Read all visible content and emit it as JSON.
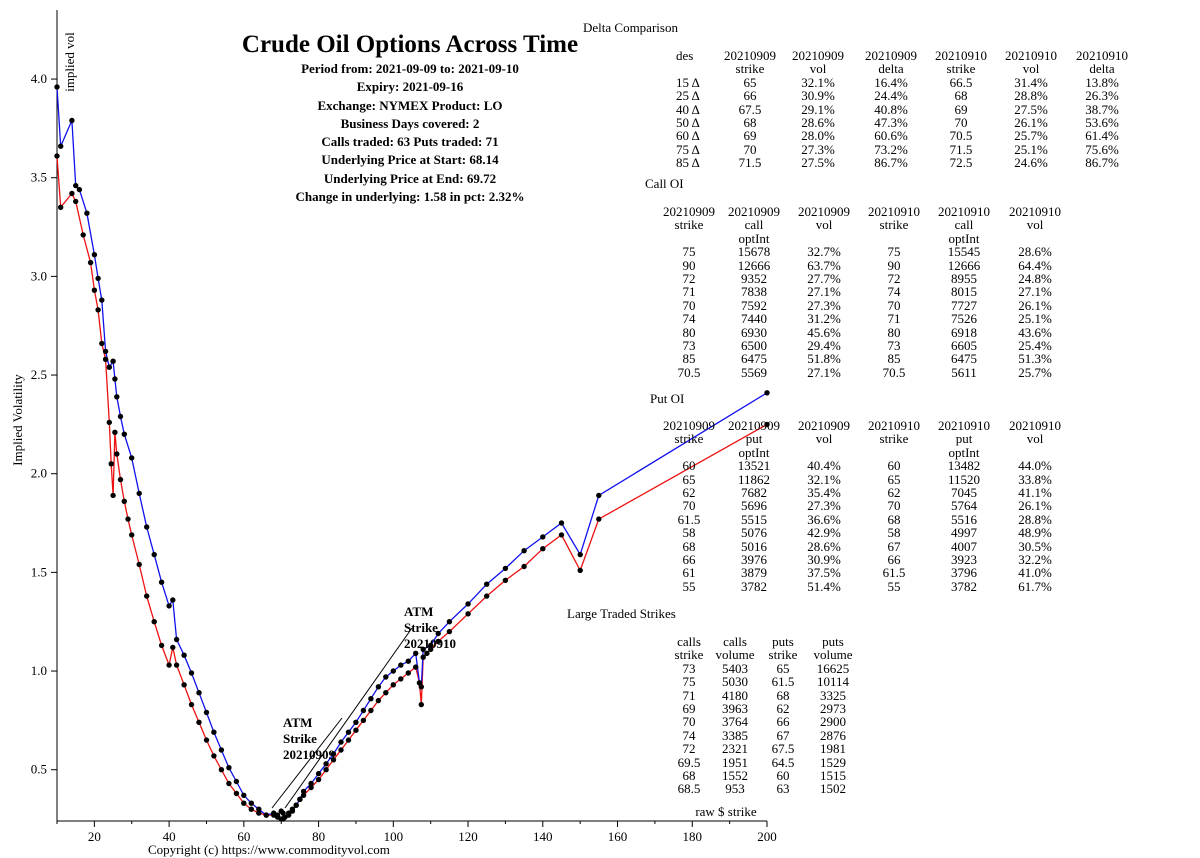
{
  "header": {
    "title": "Crude Oil Options Across Time",
    "lines": [
      "Period from: 2021-09-09 to: 2021-09-10",
      "Expiry: 2021-09-16",
      "Exchange: NYMEX Product: LO",
      "Business Days covered: 2",
      "Calls traded: 63 Puts traded: 71",
      "Underlying Price at Start: 68.14",
      "Underlying Price at End: 69.72",
      "Change in underlying: 1.58 in pct: 2.32%"
    ]
  },
  "copyright": "Copyright (c) https://www.commodityvol.com",
  "colors": {
    "series_2021-09-09": "#ee1111",
    "series_2021-09-10": "#1111ee",
    "points": "#000000"
  },
  "chart_data": {
    "type": "line",
    "title": "Crude Oil Options Across Time",
    "xlabel": "raw $ strike",
    "ylabel": "Implied Volatility",
    "y_axis_top_label": "implied vol",
    "xlim": [
      10,
      200
    ],
    "ylim": [
      0.24,
      4.35
    ],
    "x_ticks": [
      20,
      40,
      60,
      80,
      100,
      120,
      140,
      160,
      180,
      200
    ],
    "y_ticks": [
      0.5,
      1.0,
      1.5,
      2.0,
      2.5,
      3.0,
      3.5,
      4.0
    ],
    "x_tick_labels": [
      "20",
      "40",
      "60",
      "80",
      "100",
      "120",
      "140",
      "160",
      "180",
      "200"
    ],
    "y_tick_labels": [
      "0.5",
      "1.0",
      "1.5",
      "2.0",
      "2.5",
      "3.0",
      "3.5",
      "4.0"
    ],
    "grid": false,
    "series": [
      {
        "name": "20210909",
        "color": "#ee1111",
        "x": [
          10,
          11,
          14,
          15,
          17,
          19,
          20,
          21,
          22,
          23,
          24,
          24.5,
          25,
          25.5,
          26,
          27,
          28,
          29,
          30,
          32,
          34,
          36,
          38,
          40,
          41,
          42,
          44,
          46,
          48,
          50,
          52,
          54,
          56,
          58,
          60,
          62,
          64,
          66,
          68,
          69,
          70,
          70.5,
          71,
          72,
          73,
          74,
          75,
          76,
          78,
          80,
          82,
          84,
          86,
          88,
          90,
          92,
          94,
          96,
          98,
          100,
          102,
          104,
          106,
          107,
          107.5,
          108,
          109,
          110,
          112,
          115,
          120,
          125,
          130,
          135,
          140,
          145,
          150,
          155,
          200
        ],
        "values": [
          3.61,
          3.35,
          3.42,
          3.38,
          3.21,
          3.07,
          2.93,
          2.83,
          2.66,
          2.58,
          2.26,
          2.05,
          1.89,
          2.21,
          2.1,
          1.97,
          1.86,
          1.77,
          1.69,
          1.54,
          1.38,
          1.25,
          1.13,
          1.03,
          1.12,
          1.03,
          0.93,
          0.83,
          0.74,
          0.65,
          0.57,
          0.5,
          0.43,
          0.38,
          0.33,
          0.3,
          0.28,
          0.27,
          0.27,
          0.27,
          0.29,
          0.28,
          0.26,
          0.28,
          0.3,
          0.32,
          0.35,
          0.37,
          0.41,
          0.45,
          0.5,
          0.55,
          0.6,
          0.65,
          0.7,
          0.75,
          0.8,
          0.85,
          0.89,
          0.93,
          0.96,
          0.99,
          1.02,
          0.94,
          0.83,
          1.07,
          1.09,
          1.11,
          1.15,
          1.2,
          1.29,
          1.38,
          1.46,
          1.53,
          1.62,
          1.69,
          1.51,
          1.77,
          2.25
        ]
      },
      {
        "name": "20210910",
        "color": "#1111ee",
        "x": [
          10,
          11,
          14,
          15,
          16,
          18,
          20,
          21,
          22,
          23,
          24,
          25,
          25.5,
          26,
          27,
          28,
          30,
          32,
          34,
          36,
          38,
          40,
          41,
          42,
          44,
          46,
          48,
          50,
          52,
          54,
          56,
          58,
          60,
          62,
          64,
          66,
          68,
          69,
          70,
          70.5,
          71,
          72,
          73,
          74,
          75,
          76,
          78,
          80,
          82,
          84,
          86,
          88,
          90,
          92,
          94,
          96,
          98,
          100,
          102,
          104,
          106,
          107,
          107.5,
          108,
          110,
          112,
          115,
          120,
          125,
          130,
          135,
          140,
          145,
          150,
          155,
          200
        ],
        "values": [
          3.96,
          3.66,
          3.79,
          3.46,
          3.44,
          3.32,
          3.11,
          2.99,
          2.88,
          2.62,
          2.54,
          2.57,
          2.48,
          2.39,
          2.29,
          2.2,
          2.08,
          1.9,
          1.73,
          1.59,
          1.45,
          1.33,
          1.36,
          1.16,
          1.08,
          0.99,
          0.89,
          0.79,
          0.69,
          0.6,
          0.51,
          0.44,
          0.37,
          0.33,
          0.3,
          0.27,
          0.28,
          0.26,
          0.25,
          0.25,
          0.26,
          0.27,
          0.29,
          0.32,
          0.35,
          0.39,
          0.43,
          0.48,
          0.53,
          0.58,
          0.64,
          0.69,
          0.74,
          0.8,
          0.86,
          0.92,
          0.97,
          1.0,
          1.03,
          1.05,
          1.09,
          0.94,
          0.92,
          1.11,
          1.13,
          1.19,
          1.25,
          1.34,
          1.44,
          1.52,
          1.61,
          1.68,
          1.75,
          1.59,
          1.89,
          2.41
        ]
      }
    ],
    "annotations": [
      {
        "text": [
          "ATM",
          "Strike",
          "20210909"
        ],
        "x": 68,
        "y": 0.27
      },
      {
        "text": [
          "ATM",
          "Strike",
          "20210910"
        ],
        "x": 70,
        "y": 0.27
      }
    ]
  },
  "delta_comparison": {
    "title": "Delta Comparison",
    "headers": [
      [
        "des",
        "20210909",
        "20210909",
        "20210909",
        "20210910",
        "20210910",
        "20210910"
      ],
      [
        "",
        "strike",
        "vol",
        "delta",
        "strike",
        "vol",
        "delta"
      ]
    ],
    "rows": [
      [
        "15 Δ",
        "65",
        "32.1%",
        "16.4%",
        "66.5",
        "31.4%",
        "13.8%"
      ],
      [
        "25 Δ",
        "66",
        "30.9%",
        "24.4%",
        "68",
        "28.8%",
        "26.3%"
      ],
      [
        "40 Δ",
        "67.5",
        "29.1%",
        "40.8%",
        "69",
        "27.5%",
        "38.7%"
      ],
      [
        "50 Δ",
        "68",
        "28.6%",
        "47.3%",
        "70",
        "26.1%",
        "53.6%"
      ],
      [
        "60 Δ",
        "69",
        "28.0%",
        "60.6%",
        "70.5",
        "25.7%",
        "61.4%"
      ],
      [
        "75 Δ",
        "70",
        "27.3%",
        "73.2%",
        "71.5",
        "25.1%",
        "75.6%"
      ],
      [
        "85 Δ",
        "71.5",
        "27.5%",
        "86.7%",
        "72.5",
        "24.6%",
        "86.7%"
      ]
    ]
  },
  "call_oi": {
    "title": "Call OI",
    "headers": [
      [
        "20210909",
        "20210909",
        "20210909",
        "20210910",
        "20210910",
        "20210910"
      ],
      [
        "strike",
        "call",
        "vol",
        "strike",
        "call",
        "vol"
      ],
      [
        "",
        "optInt",
        "",
        "",
        "optInt",
        ""
      ]
    ],
    "rows": [
      [
        "75",
        "15678",
        "32.7%",
        "75",
        "15545",
        "28.6%"
      ],
      [
        "90",
        "12666",
        "63.7%",
        "90",
        "12666",
        "64.4%"
      ],
      [
        "72",
        "9352",
        "27.7%",
        "72",
        "8955",
        "24.8%"
      ],
      [
        "71",
        "7838",
        "27.1%",
        "74",
        "8015",
        "27.1%"
      ],
      [
        "70",
        "7592",
        "27.3%",
        "70",
        "7727",
        "26.1%"
      ],
      [
        "74",
        "7440",
        "31.2%",
        "71",
        "7526",
        "25.1%"
      ],
      [
        "80",
        "6930",
        "45.6%",
        "80",
        "6918",
        "43.6%"
      ],
      [
        "73",
        "6500",
        "29.4%",
        "73",
        "6605",
        "25.4%"
      ],
      [
        "85",
        "6475",
        "51.8%",
        "85",
        "6475",
        "51.3%"
      ],
      [
        "70.5",
        "5569",
        "27.1%",
        "70.5",
        "5611",
        "25.7%"
      ]
    ]
  },
  "put_oi": {
    "title": "Put OI",
    "headers": [
      [
        "20210909",
        "20210909",
        "20210909",
        "20210910",
        "20210910",
        "20210910"
      ],
      [
        "strike",
        "put",
        "vol",
        "strike",
        "put",
        "vol"
      ],
      [
        "",
        "optInt",
        "",
        "",
        "optInt",
        ""
      ]
    ],
    "rows": [
      [
        "60",
        "13521",
        "40.4%",
        "60",
        "13482",
        "44.0%"
      ],
      [
        "65",
        "11862",
        "32.1%",
        "65",
        "11520",
        "33.8%"
      ],
      [
        "62",
        "7682",
        "35.4%",
        "62",
        "7045",
        "41.1%"
      ],
      [
        "70",
        "5696",
        "27.3%",
        "70",
        "5764",
        "26.1%"
      ],
      [
        "61.5",
        "5515",
        "36.6%",
        "68",
        "5516",
        "28.8%"
      ],
      [
        "58",
        "5076",
        "42.9%",
        "58",
        "4997",
        "48.9%"
      ],
      [
        "68",
        "5016",
        "28.6%",
        "67",
        "4007",
        "30.5%"
      ],
      [
        "66",
        "3976",
        "30.9%",
        "66",
        "3923",
        "32.2%"
      ],
      [
        "61",
        "3879",
        "37.5%",
        "61.5",
        "3796",
        "41.0%"
      ],
      [
        "55",
        "3782",
        "51.4%",
        "55",
        "3782",
        "61.7%"
      ]
    ]
  },
  "large_traded": {
    "title": "Large Traded Strikes",
    "headers": [
      [
        "calls",
        "calls",
        "puts",
        "puts"
      ],
      [
        "strike",
        "volume",
        "strike",
        "volume"
      ]
    ],
    "rows": [
      [
        "73",
        "5403",
        "65",
        "16625"
      ],
      [
        "75",
        "5030",
        "61.5",
        "10114"
      ],
      [
        "71",
        "4180",
        "68",
        "3325"
      ],
      [
        "69",
        "3963",
        "62",
        "2973"
      ],
      [
        "70",
        "3764",
        "66",
        "2900"
      ],
      [
        "74",
        "3385",
        "67",
        "2876"
      ],
      [
        "72",
        "2321",
        "67.5",
        "1981"
      ],
      [
        "69.5",
        "1951",
        "64.5",
        "1529"
      ],
      [
        "68",
        "1552",
        "60",
        "1515"
      ],
      [
        "68.5",
        "953",
        "63",
        "1502"
      ]
    ]
  }
}
